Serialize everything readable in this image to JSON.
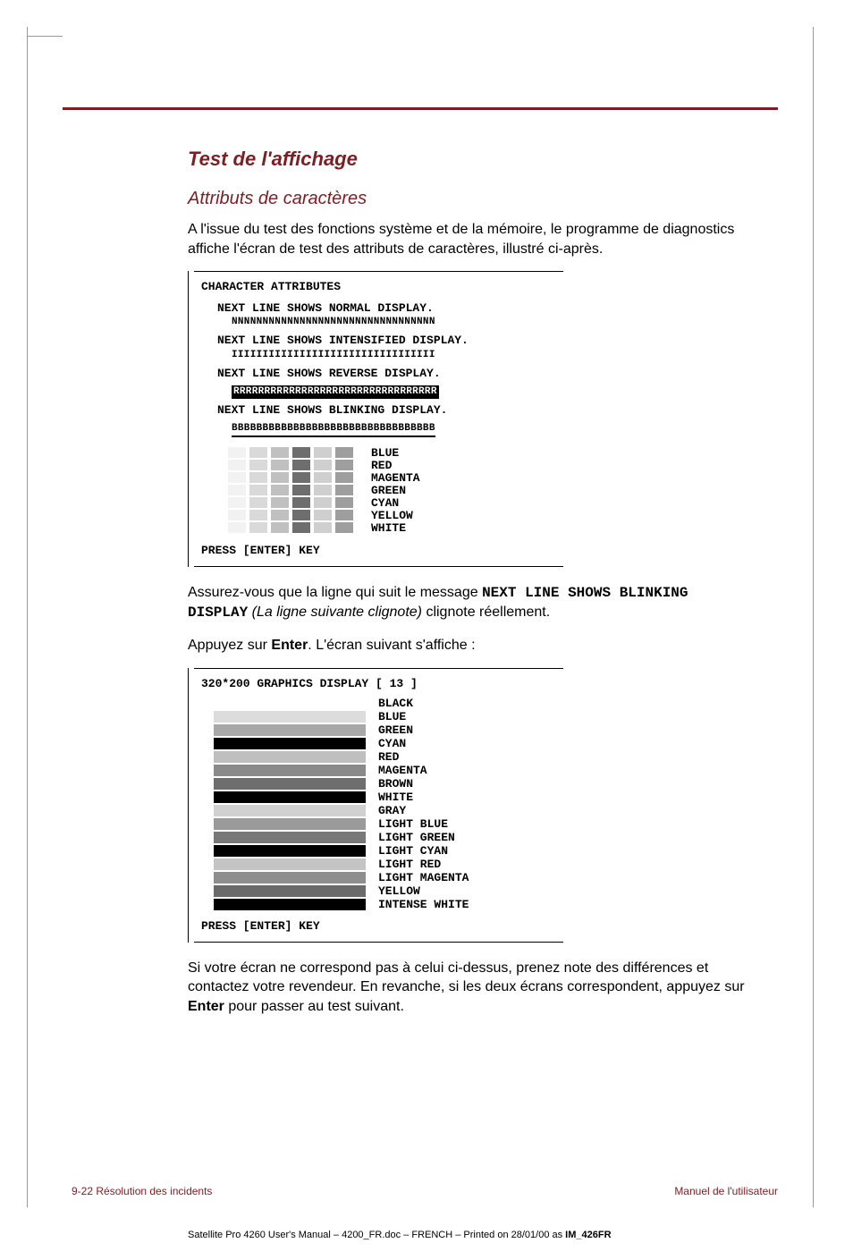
{
  "headings": {
    "h2": "Test de l'affichage",
    "h3": "Attributs de caractères"
  },
  "para1": "A l'issue du test des fonctions système et de la mémoire, le programme de diagnostics affiche l'écran de test des attributs de caractères, illustré ci-après.",
  "screen1": {
    "title": "CHARACTER ATTRIBUTES",
    "l1": "NEXT LINE SHOWS NORMAL DISPLAY.",
    "strip_n": "NNNNNNNNNNNNNNNNNNNNNNNNNNNNNNNNN",
    "l2": "NEXT LINE SHOWS INTENSIFIED DISPLAY.",
    "strip_i": "IIIIIIIIIIIIIIIIIIIIIIIIIIIIIIIII",
    "l3": "NEXT LINE SHOWS REVERSE DISPLAY.",
    "strip_r": "RRRRRRRRRRRRRRRRRRRRRRRRRRRRRRRRR",
    "l4": "NEXT LINE SHOWS BLINKING DISPLAY.",
    "strip_b": "BBBBBBBBBBBBBBBBBBBBBBBBBBBBBBBBB",
    "colors": [
      {
        "label": "BLUE",
        "shades": [
          "#f2f2f2",
          "#d9d9d9",
          "#c0c0c0",
          "#6e6e6e",
          "#cfcfcf",
          "#9e9e9e"
        ]
      },
      {
        "label": "RED",
        "shades": [
          "#f2f2f2",
          "#d9d9d9",
          "#c0c0c0",
          "#6e6e6e",
          "#cfcfcf",
          "#9e9e9e"
        ]
      },
      {
        "label": "MAGENTA",
        "shades": [
          "#f2f2f2",
          "#d9d9d9",
          "#c0c0c0",
          "#6e6e6e",
          "#cfcfcf",
          "#9e9e9e"
        ]
      },
      {
        "label": "GREEN",
        "shades": [
          "#f2f2f2",
          "#d9d9d9",
          "#c0c0c0",
          "#6e6e6e",
          "#cfcfcf",
          "#9e9e9e"
        ]
      },
      {
        "label": "CYAN",
        "shades": [
          "#f2f2f2",
          "#d9d9d9",
          "#c0c0c0",
          "#6e6e6e",
          "#cfcfcf",
          "#9e9e9e"
        ]
      },
      {
        "label": "YELLOW",
        "shades": [
          "#f2f2f2",
          "#d9d9d9",
          "#c0c0c0",
          "#6e6e6e",
          "#cfcfcf",
          "#9e9e9e"
        ]
      },
      {
        "label": "WHITE",
        "shades": [
          "#f2f2f2",
          "#d9d9d9",
          "#c0c0c0",
          "#6e6e6e",
          "#cfcfcf",
          "#9e9e9e"
        ]
      }
    ],
    "press": "PRESS [ENTER] KEY"
  },
  "para2_a": "Assurez-vous que la ligne qui suit le message ",
  "para2_code": "NEXT LINE SHOWS BLINKING DISPLAY",
  "para2_b": " (La ligne suivante clignote)",
  "para2_c": " clignote réellement.",
  "para3_a": "Appuyez sur ",
  "para3_b": "Enter",
  "para3_c": ". L'écran suivant s'affiche :",
  "screen2": {
    "title": "320*200 GRAPHICS DISPLAY [ 13 ]",
    "rows": [
      {
        "label": "BLACK",
        "color": "#ffffff"
      },
      {
        "label": "BLUE",
        "color": "#dcdcdc"
      },
      {
        "label": "GREEN",
        "color": "#a8a8a8"
      },
      {
        "label": "CYAN",
        "color": "#000000"
      },
      {
        "label": "RED",
        "color": "#bfbfbf"
      },
      {
        "label": "MAGENTA",
        "color": "#8a8a8a"
      },
      {
        "label": "BROWN",
        "color": "#6e6e6e"
      },
      {
        "label": "WHITE",
        "color": "#000000"
      },
      {
        "label": "GRAY",
        "color": "#d0d0d0"
      },
      {
        "label": "LIGHT BLUE",
        "color": "#9a9a9a"
      },
      {
        "label": "LIGHT GREEN",
        "color": "#787878"
      },
      {
        "label": "LIGHT CYAN",
        "color": "#000000"
      },
      {
        "label": "LIGHT RED",
        "color": "#c4c4c4"
      },
      {
        "label": "LIGHT MAGENTA",
        "color": "#8e8e8e"
      },
      {
        "label": "YELLOW",
        "color": "#6a6a6a"
      },
      {
        "label": "INTENSE WHITE",
        "color": "#000000"
      }
    ],
    "press": "PRESS [ENTER] KEY"
  },
  "para4": "Si votre écran ne correspond pas à celui ci-dessus, prenez note des différences et contactez votre revendeur. En revanche, si les deux écrans correspondent, appuyez sur ",
  "para4_bold": "Enter",
  "para4_b": " pour passer au test suivant.",
  "footer_left": "9-22  Résolution des incidents",
  "footer_right": "Manuel de l'utilisateur",
  "imprint_a": "Satellite Pro 4260 User's Manual  – 4200_FR.doc – FRENCH – Printed on 28/01/00 as ",
  "imprint_b": "IM_426FR"
}
